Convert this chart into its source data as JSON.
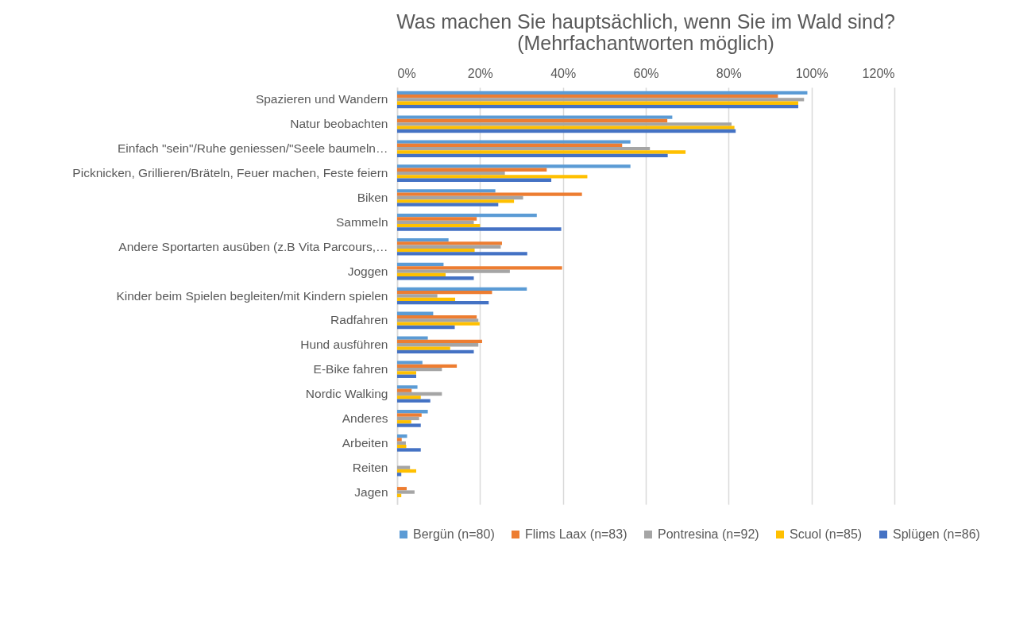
{
  "chart_data": {
    "type": "bar",
    "orientation": "horizontal",
    "title": "Was machen Sie hauptsächlich, wenn Sie im Wald sind?\n(Mehrfachantworten möglich)",
    "categories": [
      "Spazieren und Wandern",
      "Natur beobachten",
      "Einfach \"sein\"/Ruhe geniessen/\"Seele baumeln…",
      "Picknicken, Grillieren/Bräteln, Feuer machen, Feste feiern",
      "Biken",
      "Sammeln",
      "Andere Sportarten ausüben (z.B Vita Parcours,…",
      "Joggen",
      "Kinder beim Spielen begleiten/mit Kindern spielen",
      "Radfahren",
      "Hund ausführen",
      "E-Bike fahren",
      "Nordic Walking",
      "Anderes",
      "Arbeiten",
      "Reiten",
      "Jagen"
    ],
    "series": [
      {
        "name": "Bergün (n=80)",
        "color": "#5b9bd5",
        "values": [
          99.0,
          66.4,
          56.3,
          56.3,
          23.7,
          33.7,
          12.4,
          11.2,
          31.3,
          8.7,
          7.4,
          6.1,
          4.9,
          7.4,
          2.4,
          0,
          0
        ]
      },
      {
        "name": "Flims Laax (n=83)",
        "color": "#ed7d31",
        "values": [
          91.9,
          65.2,
          54.3,
          36.1,
          44.6,
          19.2,
          25.3,
          39.8,
          22.9,
          19.2,
          20.5,
          14.4,
          3.5,
          5.9,
          1.1,
          0,
          2.3
        ]
      },
      {
        "name": "Pontresina (n=92)",
        "color": "#a5a5a5",
        "values": [
          98.2,
          80.7,
          61.0,
          26.0,
          30.4,
          18.5,
          25.0,
          27.2,
          9.7,
          19.6,
          19.6,
          10.8,
          10.8,
          5.3,
          2.1,
          3.1,
          4.2
        ]
      },
      {
        "name": "Scuol (n=85)",
        "color": "#ffc000",
        "values": [
          96.8,
          81.4,
          69.6,
          45.9,
          28.2,
          20.0,
          18.7,
          11.7,
          14.0,
          19.9,
          12.8,
          4.6,
          5.7,
          3.4,
          2.2,
          4.6,
          1.0
        ]
      },
      {
        "name": "Splügen (n=86)",
        "color": "#4472c4",
        "values": [
          96.8,
          81.7,
          65.3,
          37.2,
          24.4,
          39.6,
          31.4,
          18.5,
          22.1,
          13.9,
          18.5,
          4.6,
          8.0,
          5.7,
          5.7,
          1.0,
          0
        ]
      }
    ],
    "xlim": [
      0,
      120
    ],
    "xticks": [
      {
        "value": 0,
        "label": "0%"
      },
      {
        "value": 20,
        "label": "20%"
      },
      {
        "value": 40,
        "label": "40%"
      },
      {
        "value": 60,
        "label": "60%"
      },
      {
        "value": 80,
        "label": "80%"
      },
      {
        "value": 100,
        "label": "100%"
      },
      {
        "value": 120,
        "label": "120%"
      }
    ],
    "grid": true,
    "legend": "bottom"
  }
}
